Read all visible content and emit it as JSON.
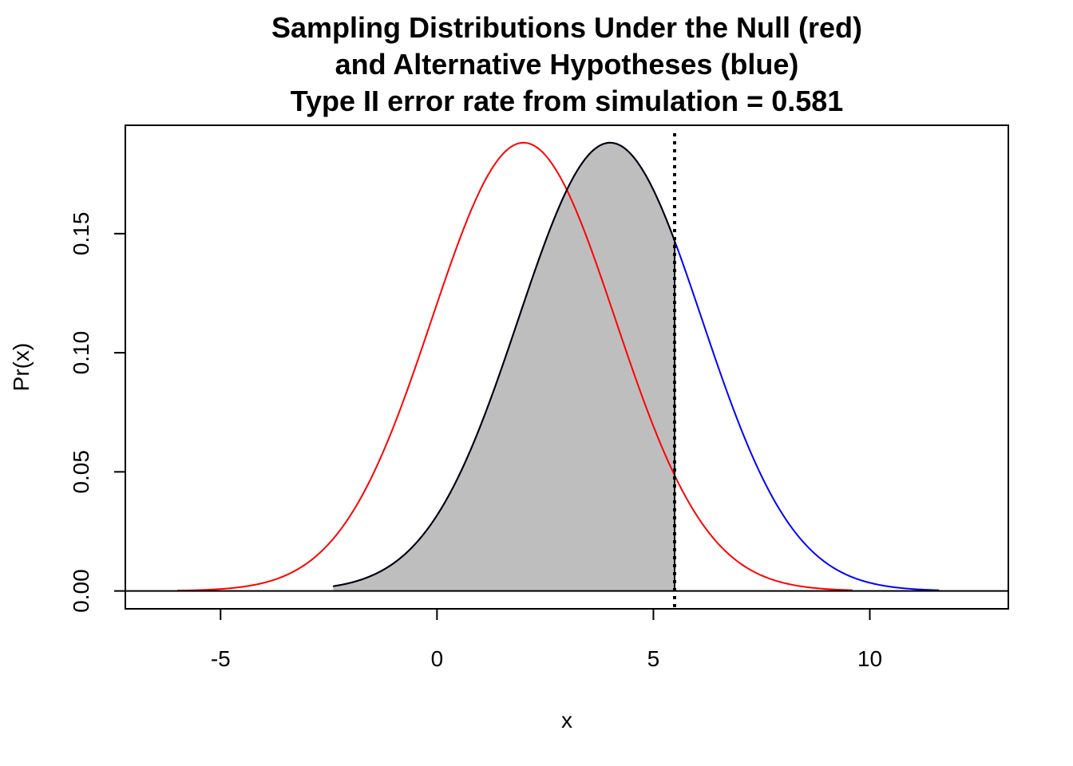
{
  "chart_data": {
    "type": "line",
    "title_lines": [
      "Sampling Distributions Under the Null (red)",
      "and Alternative Hypotheses (blue)",
      "Type II error rate from simulation = 0.581"
    ],
    "xlabel": "x",
    "ylabel": "Pr(x)",
    "xlim": [
      -7.2,
      13.2
    ],
    "ylim": [
      -0.0075,
      0.1955
    ],
    "x_ticks": [
      -5,
      0,
      5,
      10
    ],
    "x_tick_labels": [
      "-5",
      "0",
      "5",
      "10"
    ],
    "y_ticks": [
      0,
      0.05,
      0.1,
      0.15
    ],
    "y_tick_labels": [
      "0.00",
      "0.05",
      "0.10",
      "0.15"
    ],
    "grid": false,
    "series": [
      {
        "color": "#ff0000",
        "mean": 2,
        "sd": 2.12,
        "x_range": [
          -6,
          9.6
        ]
      },
      {
        "color": "#0000ff",
        "mean": 4,
        "sd": 2.12,
        "x_range": [
          -2.4,
          11.6
        ]
      }
    ],
    "critical_value": 5.49,
    "shaded_region": {
      "under": "alternative",
      "from": -2.4,
      "to": 5.49,
      "fill": "#bebebe"
    },
    "reference_line_y": 0
  }
}
